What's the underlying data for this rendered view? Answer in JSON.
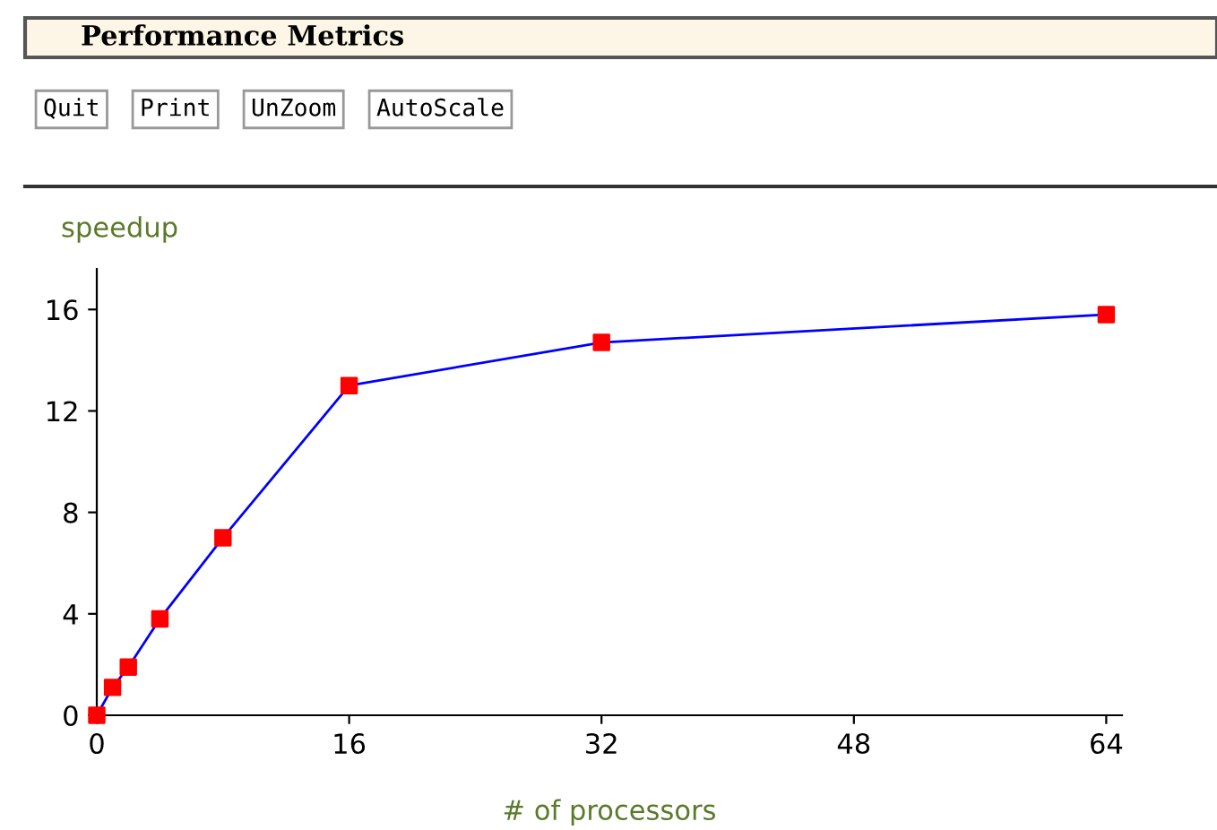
{
  "chart_data": {
    "type": "line",
    "title": "Performance Metrics",
    "xlabel": "# of processors",
    "ylabel": "speedup",
    "annotations": [
      "Quit",
      "Print",
      "UnZoom",
      "AutoScale"
    ],
    "x": [
      0,
      1,
      2,
      4,
      8,
      16,
      32,
      64
    ],
    "series": [
      {
        "color": "#0000ff",
        "colors": [
          "#ff0000",
          "#ff0000",
          "#ff0000",
          "#ff0000",
          "#ff0000",
          "#ff0000",
          "#ff0000",
          "#ff0000"
        ],
        "values": [
          0,
          1.1,
          1.9,
          3.8,
          7.0,
          13.0,
          14.7,
          15.8
        ]
      }
    ],
    "marker": "square",
    "line_style": "solid",
    "xlim": [
      0,
      65
    ],
    "ylim": [
      0,
      17.6
    ],
    "xticks": [
      0,
      16,
      32,
      48,
      64
    ],
    "yticks": [
      0,
      4,
      8,
      12,
      16
    ],
    "grid": false,
    "legend": false
  }
}
